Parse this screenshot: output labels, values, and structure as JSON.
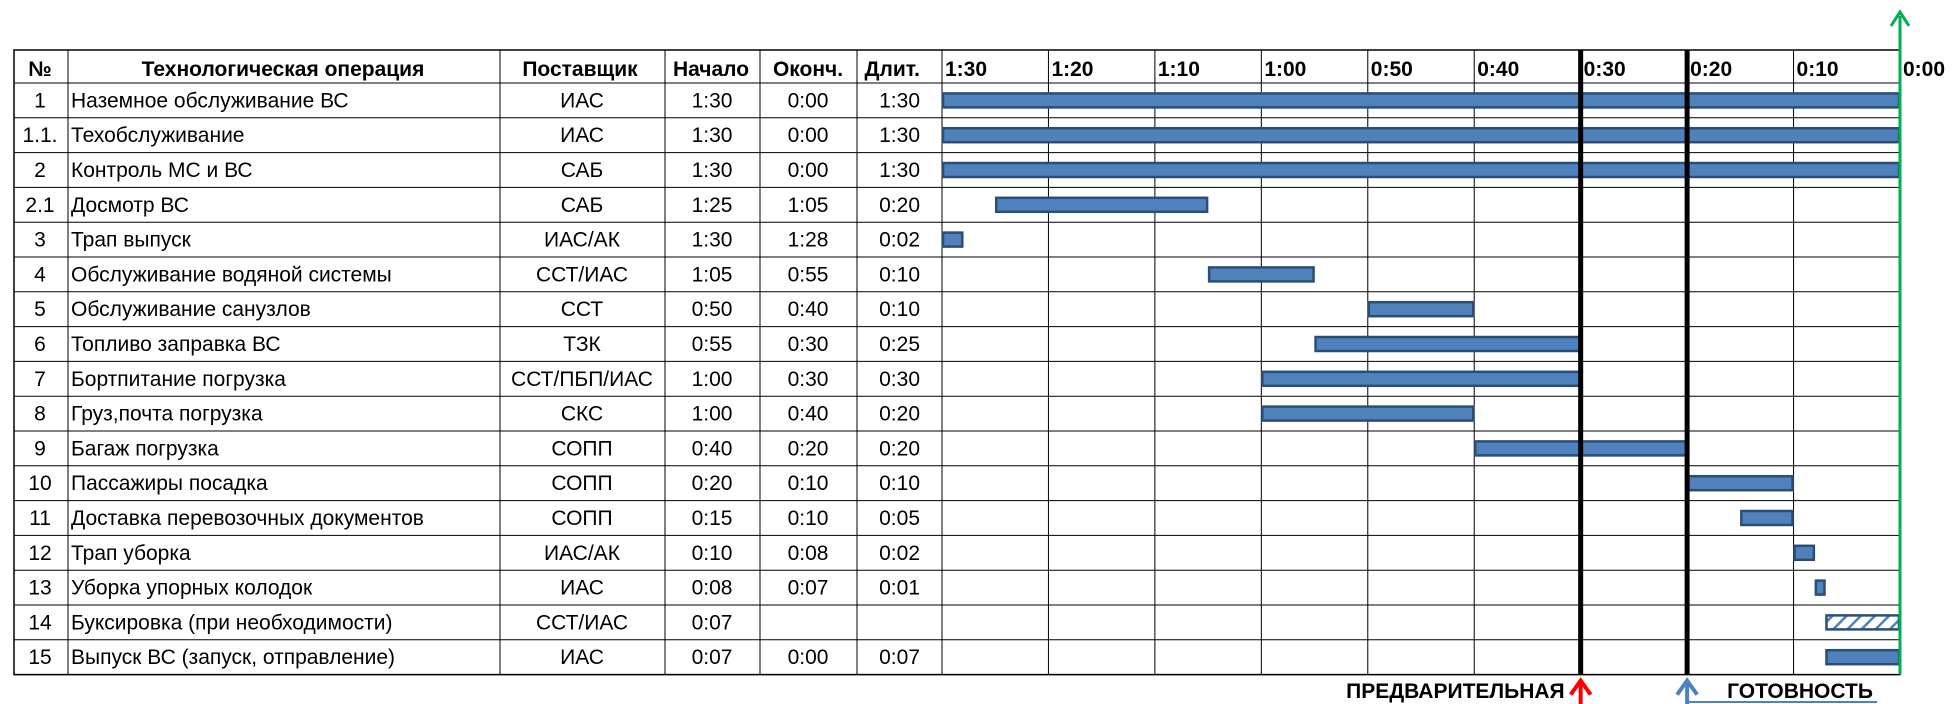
{
  "table": {
    "headers": {
      "num": "№",
      "operation": "Технологическая операция",
      "provider": "Поставщик",
      "start": "Начало",
      "end": "Оконч.",
      "duration": "Длит."
    },
    "rows": [
      {
        "num": "1",
        "operation": "Наземное обслуживание ВС",
        "provider": "ИАС",
        "start": "1:30",
        "end": "0:00",
        "duration": "1:30"
      },
      {
        "num": "1.1.",
        "operation": "Техобслуживание",
        "provider": "ИАС",
        "start": "1:30",
        "end": "0:00",
        "duration": "1:30"
      },
      {
        "num": "2",
        "operation": "Контроль МС и ВС",
        "provider": "САБ",
        "start": "1:30",
        "end": "0:00",
        "duration": "1:30"
      },
      {
        "num": "2.1",
        "operation": " Досмотр ВС",
        "provider": "САБ",
        "start": "1:25",
        "end": "1:05",
        "duration": "0:20"
      },
      {
        "num": "3",
        "operation": "Трап выпуск",
        "provider": "ИАС/АК",
        "start": "1:30",
        "end": "1:28",
        "duration": "0:02"
      },
      {
        "num": "4",
        "operation": "Обслуживание водяной системы",
        "provider": "ССТ/ИАС",
        "start": "1:05",
        "end": "0:55",
        "duration": "0:10"
      },
      {
        "num": "5",
        "operation": "Обслуживание санузлов",
        "provider": "ССТ",
        "start": "0:50",
        "end": "0:40",
        "duration": "0:10"
      },
      {
        "num": "6",
        "operation": "Топливо заправка ВС",
        "provider": "ТЗК",
        "start": "0:55",
        "end": "0:30",
        "duration": "0:25"
      },
      {
        "num": "7",
        "operation": "Бортпитание погрузка",
        "provider": "ССТ/ПБП/ИАС",
        "start": "1:00",
        "end": "0:30",
        "duration": "0:30"
      },
      {
        "num": "8",
        "operation": "Груз,почта погрузка",
        "provider": "СКС",
        "start": "1:00",
        "end": "0:40",
        "duration": "0:20"
      },
      {
        "num": "9",
        "operation": "Багаж погрузка",
        "provider": "СОПП",
        "start": "0:40",
        "end": "0:20",
        "duration": "0:20"
      },
      {
        "num": "10",
        "operation": "Пассажиры посадка",
        "provider": "СОПП",
        "start": "0:20",
        "end": "0:10",
        "duration": "0:10"
      },
      {
        "num": "11",
        "operation": "Доставка перевозочных документов",
        "provider": "СОПП",
        "start": "0:15",
        "end": "0:10",
        "duration": "0:05"
      },
      {
        "num": "12",
        "operation": "Трап уборка",
        "provider": "ИАС/АК",
        "start": "0:10",
        "end": "0:08",
        "duration": "0:02"
      },
      {
        "num": "13",
        "operation": "Уборка упорных колодок",
        "provider": "ИАС",
        "start": "0:08",
        "end": "0:07",
        "duration": "0:01"
      },
      {
        "num": "14",
        "operation": "Буксировка (при необходимости)",
        "provider": "ССТ/ИАС",
        "start": "0:07",
        "end": "",
        "duration": ""
      },
      {
        "num": "15",
        "operation": "Выпуск ВС (запуск, отправление)",
        "provider": "ИАС",
        "start": "0:07",
        "end": "0:00",
        "duration": "0:07"
      }
    ]
  },
  "chart_data": {
    "type": "bar",
    "subtype": "gantt",
    "x_unit": "minutes before departure",
    "xlim": [
      90,
      0
    ],
    "x_reversed": true,
    "x_ticks": [
      {
        "label": "1:30",
        "value": 90
      },
      {
        "label": "1:20",
        "value": 80
      },
      {
        "label": "1:10",
        "value": 70
      },
      {
        "label": "1:00",
        "value": 60
      },
      {
        "label": "0:50",
        "value": 50
      },
      {
        "label": "0:40",
        "value": 40
      },
      {
        "label": "0:30",
        "value": 30
      },
      {
        "label": "0:20",
        "value": 20
      },
      {
        "label": "0:10",
        "value": 10
      },
      {
        "label": "0:00",
        "value": 0
      }
    ],
    "grid": true,
    "bar_color": "#4f81bd",
    "bar_border_color": "#2c4d75",
    "bars": [
      {
        "row": 0,
        "start": 90,
        "end": 0,
        "style": "solid"
      },
      {
        "row": 1,
        "start": 90,
        "end": 0,
        "style": "solid"
      },
      {
        "row": 2,
        "start": 90,
        "end": 0,
        "style": "solid"
      },
      {
        "row": 3,
        "start": 85,
        "end": 65,
        "style": "solid"
      },
      {
        "row": 4,
        "start": 90,
        "end": 88,
        "style": "solid"
      },
      {
        "row": 5,
        "start": 65,
        "end": 55,
        "style": "solid"
      },
      {
        "row": 6,
        "start": 50,
        "end": 40,
        "style": "solid"
      },
      {
        "row": 7,
        "start": 55,
        "end": 30,
        "style": "solid"
      },
      {
        "row": 8,
        "start": 60,
        "end": 30,
        "style": "solid"
      },
      {
        "row": 9,
        "start": 60,
        "end": 40,
        "style": "solid"
      },
      {
        "row": 10,
        "start": 40,
        "end": 20,
        "style": "solid"
      },
      {
        "row": 11,
        "start": 20,
        "end": 10,
        "style": "solid"
      },
      {
        "row": 12,
        "start": 15,
        "end": 10,
        "style": "solid"
      },
      {
        "row": 13,
        "start": 10,
        "end": 8,
        "style": "solid"
      },
      {
        "row": 14,
        "start": 8,
        "end": 7,
        "style": "solid"
      },
      {
        "row": 15,
        "start": 7,
        "end": 0,
        "style": "hatched"
      },
      {
        "row": 16,
        "start": 7,
        "end": 0,
        "style": "solid"
      }
    ],
    "markers": [
      {
        "value": 30,
        "label": "ПРЕДВАРИТЕЛЬНАЯ",
        "arrow_color": "#ff0000",
        "label_side": "left"
      },
      {
        "value": 20,
        "label": "ГОТОВНОСТЬ",
        "arrow_color": "#4f81bd",
        "label_side": "right"
      },
      {
        "value": 0,
        "label": "",
        "arrow_color": "#00b050",
        "label_side": "none"
      }
    ],
    "departure_line_color": "#00b050"
  }
}
